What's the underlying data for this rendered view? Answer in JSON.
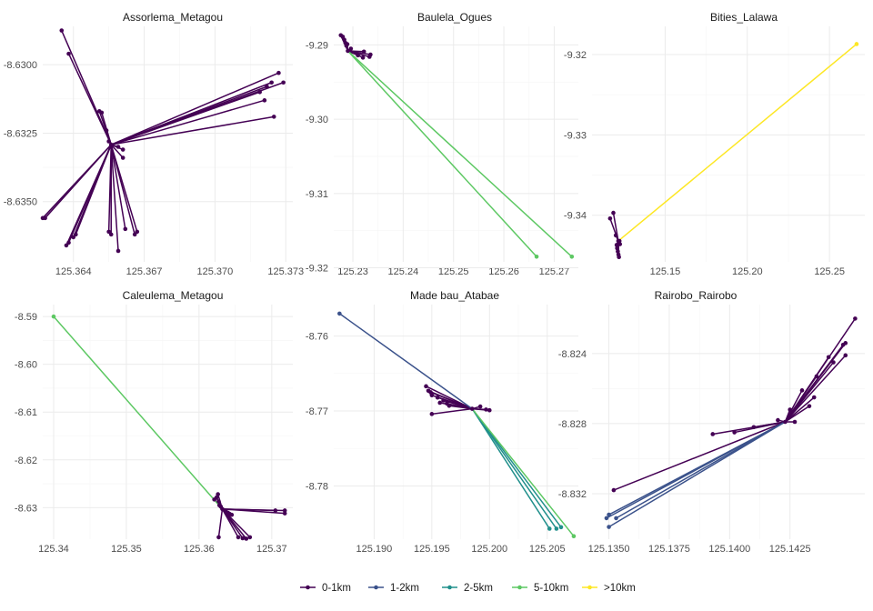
{
  "chart_data": {
    "type": "line",
    "legend": {
      "position": "bottom",
      "entries": [
        {
          "label": "0-1km",
          "color": "#440154"
        },
        {
          "label": "1-2km",
          "color": "#3B528B"
        },
        {
          "label": "2-5km",
          "color": "#21908C"
        },
        {
          "label": "5-10km",
          "color": "#5DC863"
        },
        {
          "label": ">10km",
          "color": "#FDE725"
        }
      ]
    },
    "panels": [
      {
        "title": "Assorlema_Metagou",
        "xlim": [
          125.3627,
          125.3733
        ],
        "ylim": [
          -8.6372,
          -8.6286
        ],
        "xticks": [
          125.364,
          125.367,
          125.37,
          125.373
        ],
        "xtick_labels": [
          "125.364",
          "125.367",
          "125.370",
          "125.373"
        ],
        "yticks": [
          -8.63,
          -8.6325,
          -8.635
        ],
        "ytick_labels": [
          "-8.6300",
          "-8.6325",
          "-8.6350"
        ],
        "hub": [
          125.3656,
          -8.63292
        ],
        "segments": [
          {
            "to": [
              125.3635,
              -8.62875
            ],
            "cls": "0-1km"
          },
          {
            "to": [
              125.3638,
              -8.6296
            ],
            "cls": "0-1km"
          },
          {
            "to": [
              125.3651,
              -8.6317
            ],
            "cls": "0-1km"
          },
          {
            "to": [
              125.3652,
              -8.63175
            ],
            "cls": "0-1km"
          },
          {
            "to": [
              125.3654,
              -8.6324
            ],
            "cls": "0-1km"
          },
          {
            "to": [
              125.3655,
              -8.6328
            ],
            "cls": "0-1km"
          },
          {
            "to": [
              125.3659,
              -8.633
            ],
            "cls": "0-1km"
          },
          {
            "to": [
              125.3661,
              -8.6331
            ],
            "cls": "0-1km"
          },
          {
            "to": [
              125.3661,
              -8.6334
            ],
            "cls": "0-1km"
          },
          {
            "to": [
              125.3727,
              -8.6303
            ],
            "cls": "0-1km"
          },
          {
            "to": [
              125.3729,
              -8.63065
            ],
            "cls": "0-1km"
          },
          {
            "to": [
              125.3724,
              -8.63065
            ],
            "cls": "0-1km"
          },
          {
            "to": [
              125.3722,
              -8.6308
            ],
            "cls": "0-1km"
          },
          {
            "to": [
              125.3719,
              -8.631
            ],
            "cls": "0-1km"
          },
          {
            "to": [
              125.3721,
              -8.6313
            ],
            "cls": "0-1km"
          },
          {
            "to": [
              125.3725,
              -8.6319
            ],
            "cls": "0-1km"
          },
          {
            "to": [
              125.3627,
              -8.6356
            ],
            "cls": "0-1km"
          },
          {
            "to": [
              125.3628,
              -8.6356
            ],
            "cls": "0-1km"
          },
          {
            "to": [
              125.3637,
              -8.6366
            ],
            "cls": "0-1km"
          },
          {
            "to": [
              125.3638,
              -8.6365
            ],
            "cls": "0-1km"
          },
          {
            "to": [
              125.364,
              -8.6363
            ],
            "cls": "0-1km"
          },
          {
            "to": [
              125.3641,
              -8.6362
            ],
            "cls": "0-1km"
          },
          {
            "to": [
              125.3655,
              -8.6361
            ],
            "cls": "0-1km"
          },
          {
            "to": [
              125.3656,
              -8.6362
            ],
            "cls": "0-1km"
          },
          {
            "to": [
              125.3659,
              -8.6368
            ],
            "cls": "0-1km"
          },
          {
            "to": [
              125.3662,
              -8.636
            ],
            "cls": "0-1km"
          },
          {
            "to": [
              125.3666,
              -8.6362
            ],
            "cls": "0-1km"
          },
          {
            "to": [
              125.3667,
              -8.6361
            ],
            "cls": "0-1km"
          }
        ]
      },
      {
        "title": "Baulela_Ogues",
        "xlim": [
          125.2262,
          125.2748
        ],
        "ylim": [
          -9.3192,
          -9.2875
        ],
        "xticks": [
          125.23,
          125.24,
          125.25,
          125.26,
          125.27
        ],
        "xtick_labels": [
          "125.23",
          "125.24",
          "125.25",
          "125.26",
          "125.27"
        ],
        "yticks": [
          -9.29,
          -9.3,
          -9.31,
          -9.32
        ],
        "ytick_labels": [
          "-9.29",
          "-9.30",
          "-9.31",
          "-9.32"
        ],
        "hub": [
          125.229,
          -9.2908
        ],
        "segments": [
          {
            "to": [
              125.2276,
              -9.2887
            ],
            "cls": "0-1km"
          },
          {
            "to": [
              125.228,
              -9.2889
            ],
            "cls": "0-1km"
          },
          {
            "to": [
              125.2283,
              -9.2893
            ],
            "cls": "0-1km"
          },
          {
            "to": [
              125.2285,
              -9.2897
            ],
            "cls": "0-1km"
          },
          {
            "to": [
              125.2287,
              -9.2901
            ],
            "cls": "0-1km"
          },
          {
            "to": [
              125.2289,
              -9.2899
            ],
            "cls": "0-1km"
          },
          {
            "to": [
              125.2296,
              -9.2905
            ],
            "cls": "0-1km"
          },
          {
            "to": [
              125.2322,
              -9.2909
            ],
            "cls": "0-1km"
          },
          {
            "to": [
              125.2335,
              -9.2913
            ],
            "cls": "0-1km"
          },
          {
            "to": [
              125.2333,
              -9.2916
            ],
            "cls": "0-1km"
          },
          {
            "to": [
              125.232,
              -9.2917
            ],
            "cls": "0-1km"
          },
          {
            "to": [
              125.231,
              -9.2914
            ],
            "cls": "0-1km"
          },
          {
            "to": [
              125.2665,
              -9.3185
            ],
            "cls": "5-10km"
          },
          {
            "to": [
              125.2735,
              -9.3185
            ],
            "cls": "5-10km"
          }
        ]
      },
      {
        "title": "Bities_Lalawa",
        "xlim": [
          125.1055,
          125.2715
        ],
        "ylim": [
          -9.3458,
          -9.3165
        ],
        "xticks": [
          125.15,
          125.2,
          125.25
        ],
        "xtick_labels": [
          "125.15",
          "125.20",
          "125.25"
        ],
        "yticks": [
          -9.32,
          -9.33,
          -9.34
        ],
        "ytick_labels": [
          "-9.32",
          "-9.33",
          "-9.34"
        ],
        "hub": [
          125.1215,
          -9.3432
        ],
        "segments": [
          {
            "to": [
              125.1165,
              -9.3404
            ],
            "cls": "0-1km"
          },
          {
            "to": [
              125.1185,
              -9.3397
            ],
            "cls": "0-1km"
          },
          {
            "to": [
              125.12,
              -9.3425
            ],
            "cls": "0-1km"
          },
          {
            "to": [
              125.1205,
              -9.3437
            ],
            "cls": "0-1km"
          },
          {
            "to": [
              125.1208,
              -9.3441
            ],
            "cls": "0-1km"
          },
          {
            "to": [
              125.1212,
              -9.3445
            ],
            "cls": "0-1km"
          },
          {
            "to": [
              125.1216,
              -9.3449
            ],
            "cls": "0-1km"
          },
          {
            "to": [
              125.1219,
              -9.3452
            ],
            "cls": "0-1km"
          },
          {
            "to": [
              125.1222,
              -9.3432
            ],
            "cls": "0-1km"
          },
          {
            "to": [
              125.1225,
              -9.3436
            ],
            "cls": "0-1km"
          },
          {
            "to": [
              125.2665,
              -9.3187
            ],
            "cls": ">10km"
          }
        ]
      },
      {
        "title": "Caleulema_Metagou",
        "xlim": [
          125.3385,
          125.3729
        ],
        "ylim": [
          -8.6366,
          -8.5875
        ],
        "xticks": [
          125.34,
          125.35,
          125.36,
          125.37
        ],
        "xtick_labels": [
          "125.34",
          "125.35",
          "125.36",
          "125.37"
        ],
        "yticks": [
          -8.59,
          -8.6,
          -8.61,
          -8.62,
          -8.63
        ],
        "ytick_labels": [
          "-8.59",
          "-8.60",
          "-8.61",
          "-8.62",
          "-8.63"
        ],
        "hub": [
          125.3632,
          -8.6303
        ],
        "segments": [
          {
            "to": [
              125.3621,
              -8.6283
            ],
            "cls": "0-1km"
          },
          {
            "to": [
              125.3624,
              -8.6279
            ],
            "cls": "0-1km"
          },
          {
            "to": [
              125.3626,
              -8.6272
            ],
            "cls": "0-1km"
          },
          {
            "to": [
              125.3627,
              -8.6287
            ],
            "cls": "0-1km"
          },
          {
            "to": [
              125.3628,
              -8.6295
            ],
            "cls": "0-1km"
          },
          {
            "to": [
              125.363,
              -8.6298
            ],
            "cls": "0-1km"
          },
          {
            "to": [
              125.3637,
              -8.6308
            ],
            "cls": "0-1km"
          },
          {
            "to": [
              125.364,
              -8.6311
            ],
            "cls": "0-1km"
          },
          {
            "to": [
              125.3642,
              -8.6313
            ],
            "cls": "0-1km"
          },
          {
            "to": [
              125.3645,
              -8.6315
            ],
            "cls": "0-1km"
          },
          {
            "to": [
              125.3627,
              -8.6362
            ],
            "cls": "0-1km"
          },
          {
            "to": [
              125.3654,
              -8.6362
            ],
            "cls": "0-1km"
          },
          {
            "to": [
              125.366,
              -8.6364
            ],
            "cls": "0-1km"
          },
          {
            "to": [
              125.3665,
              -8.6365
            ],
            "cls": "0-1km"
          },
          {
            "to": [
              125.367,
              -8.6362
            ],
            "cls": "0-1km"
          },
          {
            "to": [
              125.3705,
              -8.6306
            ],
            "cls": "0-1km"
          },
          {
            "to": [
              125.3718,
              -8.6306
            ],
            "cls": "0-1km"
          },
          {
            "to": [
              125.3718,
              -8.6312
            ],
            "cls": "0-1km"
          },
          {
            "to": [
              125.34,
              -8.59
            ],
            "cls": "5-10km"
          }
        ]
      },
      {
        "title": "Made bau_Atabae",
        "xlim": [
          125.1865,
          125.2077
        ],
        "ylim": [
          -8.7871,
          -8.7558
        ],
        "xticks": [
          125.19,
          125.195,
          125.2,
          125.205
        ],
        "xtick_labels": [
          "125.190",
          "125.195",
          "125.200",
          "125.205"
        ],
        "yticks": [
          -8.76,
          -8.77,
          -8.78
        ],
        "ytick_labels": [
          "-8.76",
          "-8.77",
          "-8.78"
        ],
        "hub": [
          125.1985,
          -8.7697
        ],
        "segments": [
          {
            "to": [
              125.1945,
              -8.7667
            ],
            "cls": "0-1km"
          },
          {
            "to": [
              125.1947,
              -8.7673
            ],
            "cls": "0-1km"
          },
          {
            "to": [
              125.1949,
              -8.7675
            ],
            "cls": "0-1km"
          },
          {
            "to": [
              125.195,
              -8.7679
            ],
            "cls": "0-1km"
          },
          {
            "to": [
              125.1955,
              -8.7682
            ],
            "cls": "0-1km"
          },
          {
            "to": [
              125.1957,
              -8.7689
            ],
            "cls": "0-1km"
          },
          {
            "to": [
              125.196,
              -8.7686
            ],
            "cls": "0-1km"
          },
          {
            "to": [
              125.1963,
              -8.769
            ],
            "cls": "0-1km"
          },
          {
            "to": [
              125.1965,
              -8.7693
            ],
            "cls": "0-1km"
          },
          {
            "to": [
              125.195,
              -8.7704
            ],
            "cls": "0-1km"
          },
          {
            "to": [
              125.1992,
              -8.7694
            ],
            "cls": "0-1km"
          },
          {
            "to": [
              125.1997,
              -8.7698
            ],
            "cls": "0-1km"
          },
          {
            "to": [
              125.2,
              -8.7699
            ],
            "cls": "0-1km"
          },
          {
            "to": [
              125.187,
              -8.757
            ],
            "cls": "1-2km"
          },
          {
            "to": [
              125.2052,
              -8.7857
            ],
            "cls": "2-5km"
          },
          {
            "to": [
              125.2058,
              -8.7857
            ],
            "cls": "2-5km"
          },
          {
            "to": [
              125.2062,
              -8.7855
            ],
            "cls": "2-5km"
          },
          {
            "to": [
              125.2073,
              -8.7867
            ],
            "cls": "5-10km"
          }
        ]
      },
      {
        "title": "Rairobo_Rairobo",
        "xlim": [
          125.1343,
          125.1456
        ],
        "ylim": [
          -8.8346,
          -8.8212
        ],
        "xticks": [
          125.135,
          125.1375,
          125.14,
          125.1425
        ],
        "xtick_labels": [
          "125.1350",
          "125.1375",
          "125.1400",
          "125.1425"
        ],
        "yticks": [
          -8.824,
          -8.828,
          -8.832
        ],
        "ytick_labels": [
          "-8.824",
          "-8.828",
          "-8.832"
        ],
        "hub": [
          125.1423,
          -8.8279
        ],
        "segments": [
          {
            "to": [
              125.1452,
              -8.822
            ],
            "cls": "0-1km"
          },
          {
            "to": [
              125.1448,
              -8.8234
            ],
            "cls": "0-1km"
          },
          {
            "to": [
              125.1447,
              -8.8235
            ],
            "cls": "0-1km"
          },
          {
            "to": [
              125.1448,
              -8.8241
            ],
            "cls": "0-1km"
          },
          {
            "to": [
              125.1441,
              -8.8242
            ],
            "cls": "0-1km"
          },
          {
            "to": [
              125.1443,
              -8.8245
            ],
            "cls": "0-1km"
          },
          {
            "to": [
              125.1436,
              -8.8253
            ],
            "cls": "0-1km"
          },
          {
            "to": [
              125.143,
              -8.8261
            ],
            "cls": "0-1km"
          },
          {
            "to": [
              125.1435,
              -8.8265
            ],
            "cls": "0-1km"
          },
          {
            "to": [
              125.1433,
              -8.827
            ],
            "cls": "0-1km"
          },
          {
            "to": [
              125.1425,
              -8.8272
            ],
            "cls": "0-1km"
          },
          {
            "to": [
              125.1427,
              -8.8279
            ],
            "cls": "0-1km"
          },
          {
            "to": [
              125.142,
              -8.8278
            ],
            "cls": "0-1km"
          },
          {
            "to": [
              125.141,
              -8.8282
            ],
            "cls": "0-1km"
          },
          {
            "to": [
              125.1402,
              -8.8285
            ],
            "cls": "0-1km"
          },
          {
            "to": [
              125.1393,
              -8.8286
            ],
            "cls": "0-1km"
          },
          {
            "to": [
              125.1352,
              -8.8318
            ],
            "cls": "0-1km"
          },
          {
            "to": [
              125.135,
              -8.8332
            ],
            "cls": "1-2km"
          },
          {
            "to": [
              125.1349,
              -8.8334
            ],
            "cls": "1-2km"
          },
          {
            "to": [
              125.1353,
              -8.8334
            ],
            "cls": "1-2km"
          },
          {
            "to": [
              125.135,
              -8.8339
            ],
            "cls": "1-2km"
          }
        ]
      }
    ]
  }
}
